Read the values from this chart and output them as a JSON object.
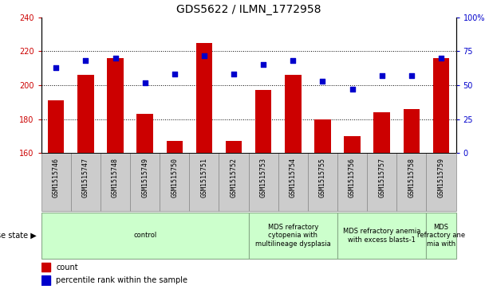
{
  "title": "GDS5622 / ILMN_1772958",
  "samples": [
    "GSM1515746",
    "GSM1515747",
    "GSM1515748",
    "GSM1515749",
    "GSM1515750",
    "GSM1515751",
    "GSM1515752",
    "GSM1515753",
    "GSM1515754",
    "GSM1515755",
    "GSM1515756",
    "GSM1515757",
    "GSM1515758",
    "GSM1515759"
  ],
  "counts": [
    191,
    206,
    216,
    183,
    167,
    225,
    167,
    197,
    206,
    180,
    170,
    184,
    186,
    216
  ],
  "percentiles": [
    63,
    68,
    70,
    52,
    58,
    72,
    58,
    65,
    68,
    53,
    47,
    57,
    57,
    70
  ],
  "ylim_left": [
    160,
    240
  ],
  "ylim_right": [
    0,
    100
  ],
  "yticks_left": [
    160,
    180,
    200,
    220,
    240
  ],
  "yticks_right": [
    0,
    25,
    50,
    75,
    100
  ],
  "bar_color": "#cc0000",
  "dot_color": "#0000cc",
  "bar_bottom": 160,
  "disease_groups": [
    {
      "label": "control",
      "start": 0,
      "end": 7
    },
    {
      "label": "MDS refractory\ncytopenia with\nmultilineage dysplasia",
      "start": 7,
      "end": 10
    },
    {
      "label": "MDS refractory anemia\nwith excess blasts-1",
      "start": 10,
      "end": 13
    },
    {
      "label": "MDS\nrefractory ane\nmia with",
      "start": 13,
      "end": 14
    }
  ],
  "group_color": "#ccffcc",
  "group_border_color": "#88aa88",
  "sample_box_color": "#cccccc",
  "sample_box_border": "#888888",
  "legend_count_color": "#cc0000",
  "legend_pct_color": "#0000cc",
  "fontsize_title": 10,
  "fontsize_yticks": 7,
  "fontsize_sample": 6,
  "fontsize_disease": 6,
  "fontsize_legend": 7,
  "fontsize_disease_label": 7
}
